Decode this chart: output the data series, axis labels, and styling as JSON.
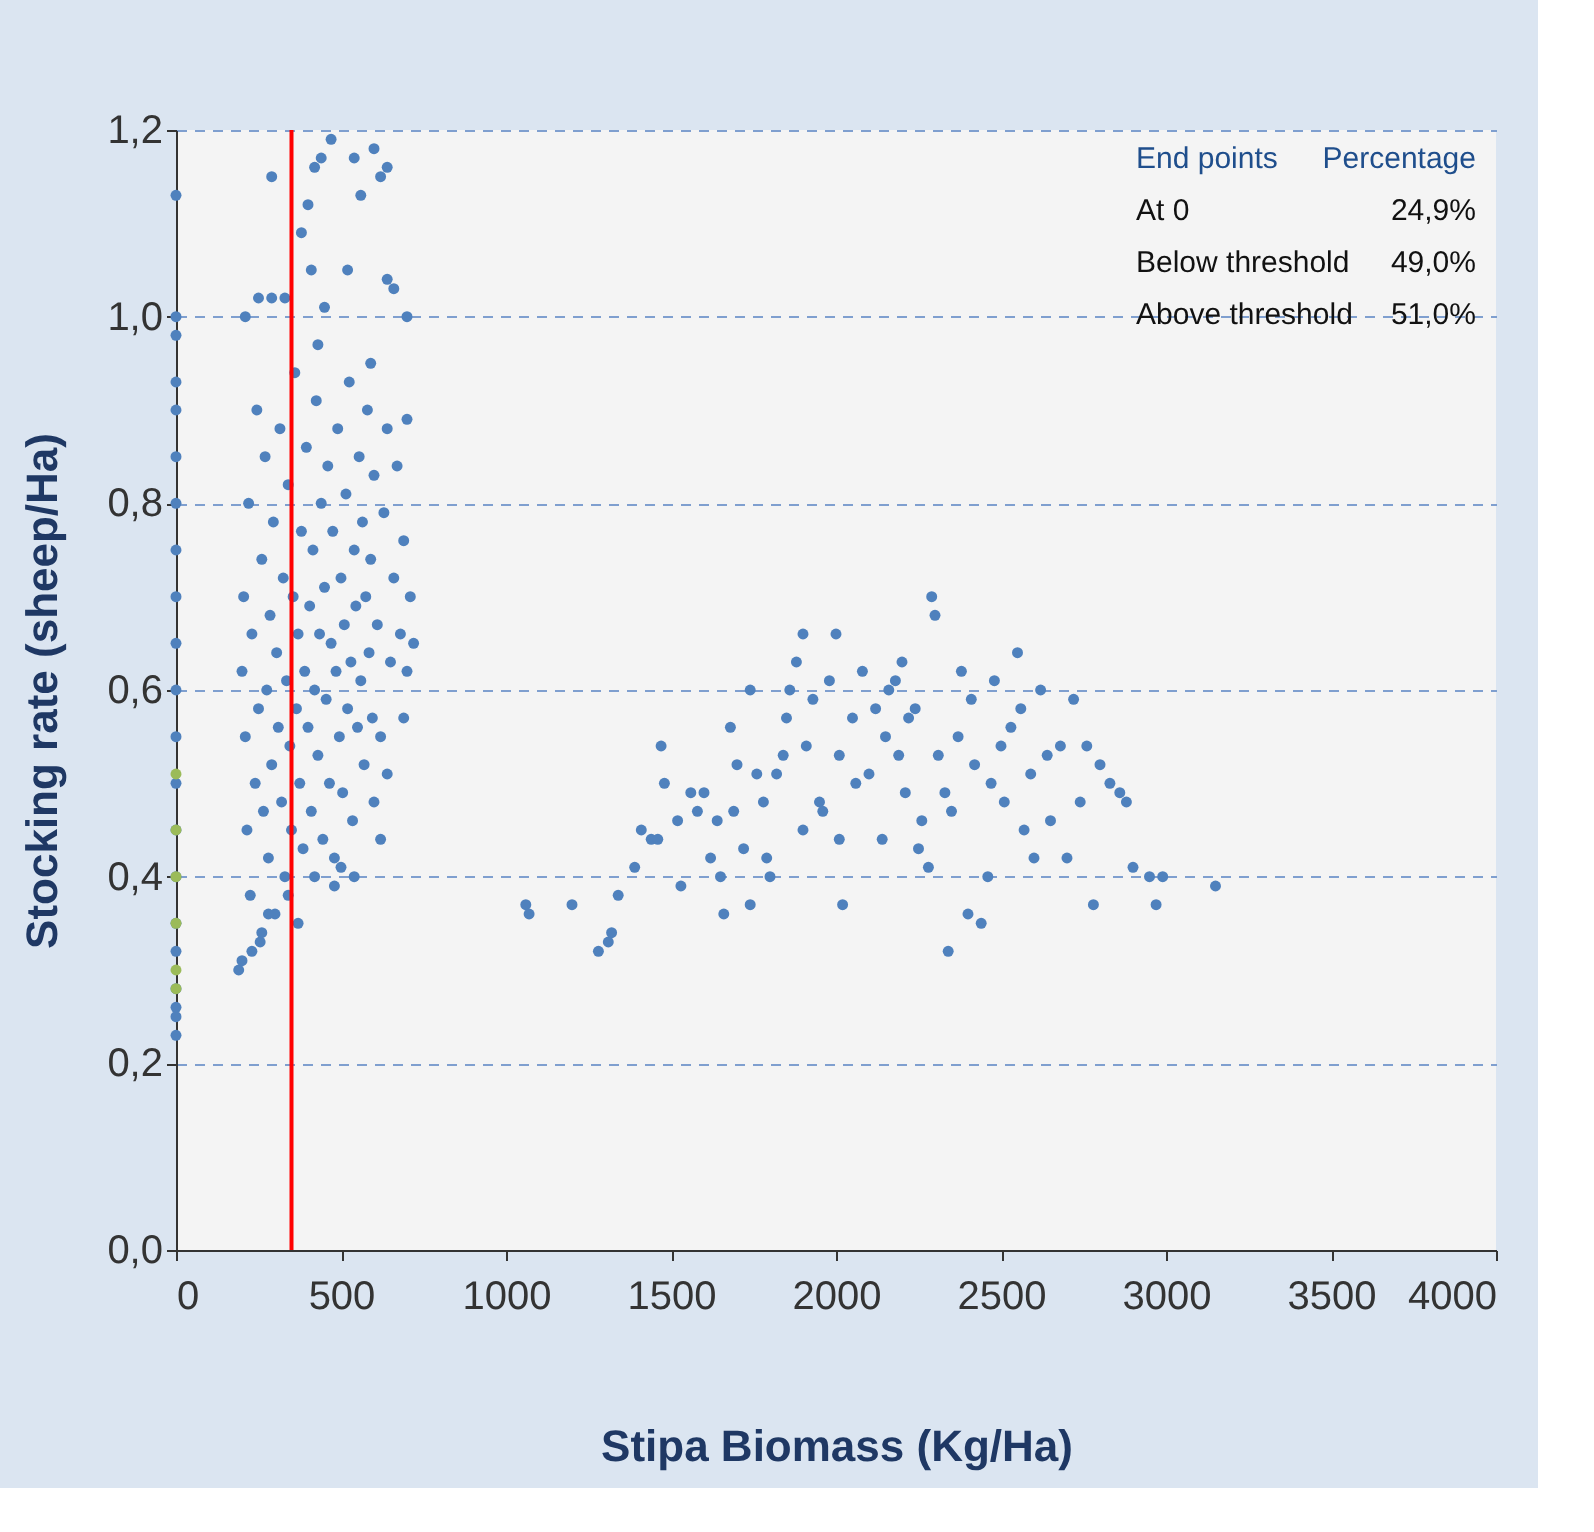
{
  "chart_data": {
    "type": "scatter",
    "xlabel": "Stipa Biomass (Kg/Ha)",
    "ylabel": "Stocking rate (sheep/Ha)",
    "xlim": [
      0,
      4000
    ],
    "xticks": [
      0,
      500,
      1000,
      1500,
      2000,
      2500,
      3000,
      3500,
      4000
    ],
    "ylim": [
      0,
      1.2
    ],
    "yticks": [
      {
        "value": 0,
        "label": "0,0"
      },
      {
        "value": 0.2,
        "label": "0,2"
      },
      {
        "value": 0.4,
        "label": "0,4"
      },
      {
        "value": 0.6,
        "label": "0,6"
      },
      {
        "value": 0.8,
        "label": "0,8"
      },
      {
        "value": 1.0,
        "label": "1,0"
      },
      {
        "value": 1.2,
        "label": "1,2"
      }
    ],
    "grid": "y",
    "legend": false,
    "marker": "circle",
    "ref_lines": [
      {
        "axis": "x",
        "value": 350,
        "label": null,
        "color": "#ff0000"
      }
    ],
    "annotations": [
      "End points",
      "Percentage",
      "At 0",
      "24,9%",
      "Below threshold",
      "49,0%",
      "Above threshold",
      "51,0%"
    ],
    "series": [
      {
        "color": "#4f81bd",
        "x": [
          0,
          0,
          0,
          0,
          0,
          0,
          0,
          0,
          0,
          0,
          0,
          0,
          0,
          0,
          0,
          0,
          0,
          0,
          0,
          0,
          0,
          290,
          380,
          420,
          440,
          470,
          540,
          560,
          600,
          620,
          640,
          400,
          410,
          450,
          520,
          210,
          250,
          290,
          330,
          640,
          700,
          430,
          590,
          660,
          200,
          205,
          210,
          215,
          220,
          225,
          230,
          240,
          245,
          250,
          255,
          260,
          265,
          270,
          275,
          280,
          285,
          290,
          295,
          300,
          305,
          310,
          315,
          320,
          325,
          330,
          335,
          340,
          345,
          350,
          355,
          360,
          365,
          370,
          375,
          380,
          385,
          390,
          395,
          400,
          405,
          410,
          415,
          420,
          425,
          430,
          435,
          440,
          445,
          450,
          455,
          460,
          465,
          470,
          475,
          480,
          485,
          490,
          495,
          500,
          505,
          510,
          515,
          520,
          525,
          530,
          535,
          540,
          545,
          550,
          555,
          560,
          565,
          570,
          575,
          580,
          585,
          590,
          595,
          600,
          610,
          620,
          630,
          640,
          650,
          660,
          670,
          680,
          690,
          700,
          710,
          720,
          190,
          200,
          230,
          260,
          280,
          340,
          370,
          420,
          480,
          500,
          540,
          600,
          620,
          690,
          700,
          640,
          1060,
          1070,
          1200,
          1280,
          1310,
          1320,
          1340,
          1390,
          1410,
          1440,
          1460,
          1470,
          1480,
          1520,
          1530,
          1560,
          1600,
          1620,
          1640,
          1650,
          1660,
          1680,
          1690,
          1700,
          1720,
          1740,
          1760,
          1780,
          1790,
          1800,
          1820,
          1840,
          1850,
          1860,
          1880,
          1900,
          1910,
          1930,
          1950,
          1960,
          1980,
          2000,
          2010,
          2020,
          2050,
          2060,
          2080,
          2100,
          2120,
          2140,
          2150,
          2160,
          2180,
          2190,
          2200,
          2210,
          2220,
          2240,
          2260,
          2280,
          2290,
          2300,
          2310,
          2330,
          2340,
          2350,
          2370,
          2380,
          2400,
          2410,
          2420,
          2440,
          2460,
          2470,
          2480,
          2500,
          2510,
          2530,
          2550,
          2560,
          2570,
          2590,
          2600,
          2620,
          2640,
          2650,
          2680,
          2700,
          2720,
          2740,
          2760,
          2780,
          2800,
          2830,
          2860,
          2880,
          2900,
          2950,
          2970,
          2990,
          3150,
          1740,
          2250,
          2010,
          1580,
          1900
        ],
        "values": [
          1.13,
          1.0,
          0.98,
          0.93,
          0.9,
          0.85,
          0.8,
          0.75,
          0.7,
          0.65,
          0.6,
          0.55,
          0.5,
          0.45,
          0.4,
          0.35,
          0.32,
          0.28,
          0.26,
          0.25,
          0.23,
          1.15,
          1.09,
          1.16,
          1.17,
          1.19,
          1.17,
          1.13,
          1.18,
          1.15,
          1.16,
          1.12,
          1.05,
          1.01,
          1.05,
          1.0,
          1.02,
          1.02,
          1.02,
          1.04,
          1.0,
          0.97,
          0.95,
          1.03,
          0.62,
          0.7,
          0.55,
          0.45,
          0.8,
          0.38,
          0.66,
          0.5,
          0.9,
          0.58,
          0.33,
          0.74,
          0.47,
          0.85,
          0.6,
          0.42,
          0.68,
          0.52,
          0.78,
          0.36,
          0.64,
          0.56,
          0.88,
          0.48,
          0.72,
          0.4,
          0.61,
          0.82,
          0.54,
          0.45,
          0.7,
          0.94,
          0.58,
          0.66,
          0.5,
          0.77,
          0.43,
          0.62,
          0.86,
          0.56,
          0.69,
          0.47,
          0.75,
          0.6,
          0.91,
          0.53,
          0.66,
          0.8,
          0.44,
          0.71,
          0.59,
          0.84,
          0.5,
          0.65,
          0.77,
          0.42,
          0.62,
          0.88,
          0.55,
          0.72,
          0.49,
          0.67,
          0.81,
          0.58,
          0.93,
          0.63,
          0.46,
          0.75,
          0.69,
          0.56,
          0.85,
          0.61,
          0.78,
          0.52,
          0.7,
          0.9,
          0.64,
          0.74,
          0.57,
          0.83,
          0.67,
          0.55,
          0.79,
          0.88,
          0.63,
          0.72,
          0.84,
          0.66,
          0.76,
          0.89,
          0.7,
          0.65,
          0.3,
          0.31,
          0.32,
          0.34,
          0.36,
          0.38,
          0.35,
          0.4,
          0.39,
          0.41,
          0.4,
          0.48,
          0.44,
          0.57,
          0.62,
          0.51,
          0.37,
          0.36,
          0.37,
          0.32,
          0.33,
          0.34,
          0.38,
          0.41,
          0.45,
          0.44,
          0.44,
          0.54,
          0.5,
          0.46,
          0.39,
          0.49,
          0.49,
          0.42,
          0.46,
          0.4,
          0.36,
          0.56,
          0.47,
          0.52,
          0.43,
          0.37,
          0.51,
          0.48,
          0.42,
          0.4,
          0.51,
          0.53,
          0.57,
          0.6,
          0.63,
          0.66,
          0.54,
          0.59,
          0.48,
          0.47,
          0.61,
          0.66,
          0.53,
          0.37,
          0.57,
          0.5,
          0.62,
          0.51,
          0.58,
          0.44,
          0.55,
          0.6,
          0.61,
          0.53,
          0.63,
          0.49,
          0.57,
          0.58,
          0.46,
          0.41,
          0.7,
          0.68,
          0.53,
          0.49,
          0.32,
          0.47,
          0.55,
          0.62,
          0.36,
          0.59,
          0.52,
          0.35,
          0.4,
          0.5,
          0.61,
          0.54,
          0.48,
          0.56,
          0.64,
          0.58,
          0.45,
          0.51,
          0.42,
          0.6,
          0.53,
          0.46,
          0.54,
          0.42,
          0.59,
          0.48,
          0.54,
          0.37,
          0.52,
          0.5,
          0.49,
          0.48,
          0.41,
          0.4,
          0.37,
          0.4,
          0.39,
          0.6,
          0.43,
          0.44,
          0.47,
          0.45
        ]
      },
      {
        "color": "#9bbb59",
        "x": [
          0,
          0,
          0,
          0,
          0,
          0
        ],
        "values": [
          0.51,
          0.45,
          0.4,
          0.35,
          0.3,
          0.28
        ]
      }
    ]
  }
}
